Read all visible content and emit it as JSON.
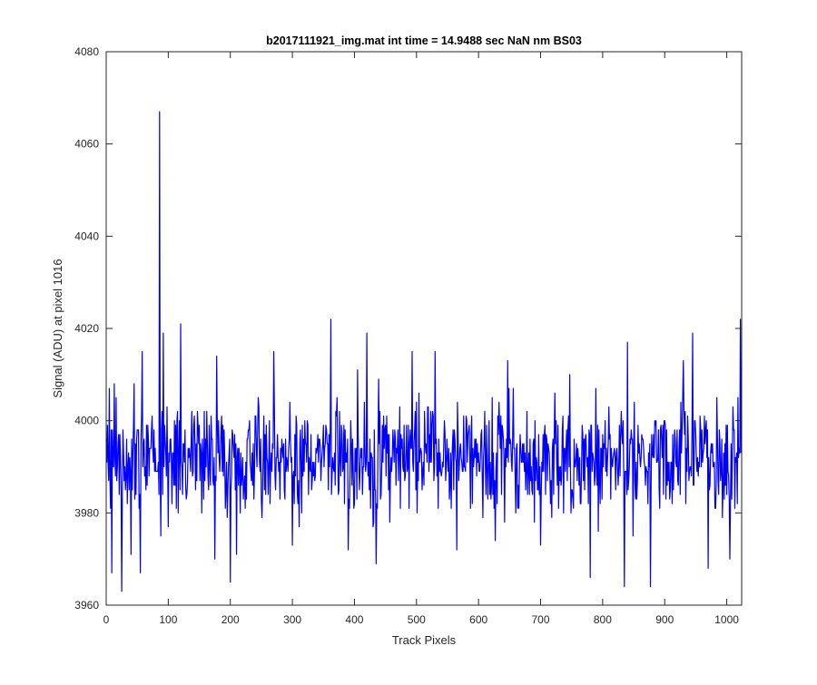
{
  "chart_data": {
    "type": "line",
    "title": "b2017111921_img.mat int time = 14.9488 sec  NaN nm BS03",
    "xlabel": "Track Pixels",
    "ylabel": "Signal (ADU) at pixel 1016",
    "xlim": [
      0,
      1024
    ],
    "ylim": [
      3960,
      4080
    ],
    "xticks": [
      0,
      100,
      200,
      300,
      400,
      500,
      600,
      700,
      800,
      900,
      1000
    ],
    "yticks": [
      3960,
      3980,
      4000,
      4020,
      4040,
      4060,
      4080
    ],
    "grid": false,
    "box": true,
    "line_color": "#0000ff",
    "noise": {
      "n_points": 1024,
      "baseline": 3992,
      "sigma": 6,
      "seed": 20171119
    },
    "notable_points": [
      {
        "x": 1,
        "y": 3991
      },
      {
        "x": 5,
        "y": 4007
      },
      {
        "x": 9,
        "y": 3967
      },
      {
        "x": 16,
        "y": 4005
      },
      {
        "x": 25,
        "y": 3963
      },
      {
        "x": 40,
        "y": 3971
      },
      {
        "x": 45,
        "y": 4008
      },
      {
        "x": 55,
        "y": 3967
      },
      {
        "x": 58,
        "y": 4015
      },
      {
        "x": 86,
        "y": 4067
      },
      {
        "x": 88,
        "y": 3975
      },
      {
        "x": 92,
        "y": 4019
      },
      {
        "x": 100,
        "y": 3977
      },
      {
        "x": 120,
        "y": 4021
      },
      {
        "x": 130,
        "y": 3984
      },
      {
        "x": 175,
        "y": 3970
      },
      {
        "x": 178,
        "y": 4014
      },
      {
        "x": 200,
        "y": 3965
      },
      {
        "x": 210,
        "y": 3971
      },
      {
        "x": 270,
        "y": 4015
      },
      {
        "x": 300,
        "y": 3973
      },
      {
        "x": 362,
        "y": 4022
      },
      {
        "x": 390,
        "y": 3972
      },
      {
        "x": 420,
        "y": 4019
      },
      {
        "x": 435,
        "y": 3969
      },
      {
        "x": 493,
        "y": 4015
      },
      {
        "x": 530,
        "y": 4015
      },
      {
        "x": 565,
        "y": 3972
      },
      {
        "x": 627,
        "y": 3974
      },
      {
        "x": 647,
        "y": 4013
      },
      {
        "x": 700,
        "y": 3973
      },
      {
        "x": 747,
        "y": 4010
      },
      {
        "x": 780,
        "y": 3966
      },
      {
        "x": 835,
        "y": 3964
      },
      {
        "x": 840,
        "y": 4017
      },
      {
        "x": 877,
        "y": 3964
      },
      {
        "x": 930,
        "y": 4013
      },
      {
        "x": 945,
        "y": 4019
      },
      {
        "x": 970,
        "y": 3968
      },
      {
        "x": 1005,
        "y": 3970
      },
      {
        "x": 1022,
        "y": 4022
      }
    ]
  }
}
